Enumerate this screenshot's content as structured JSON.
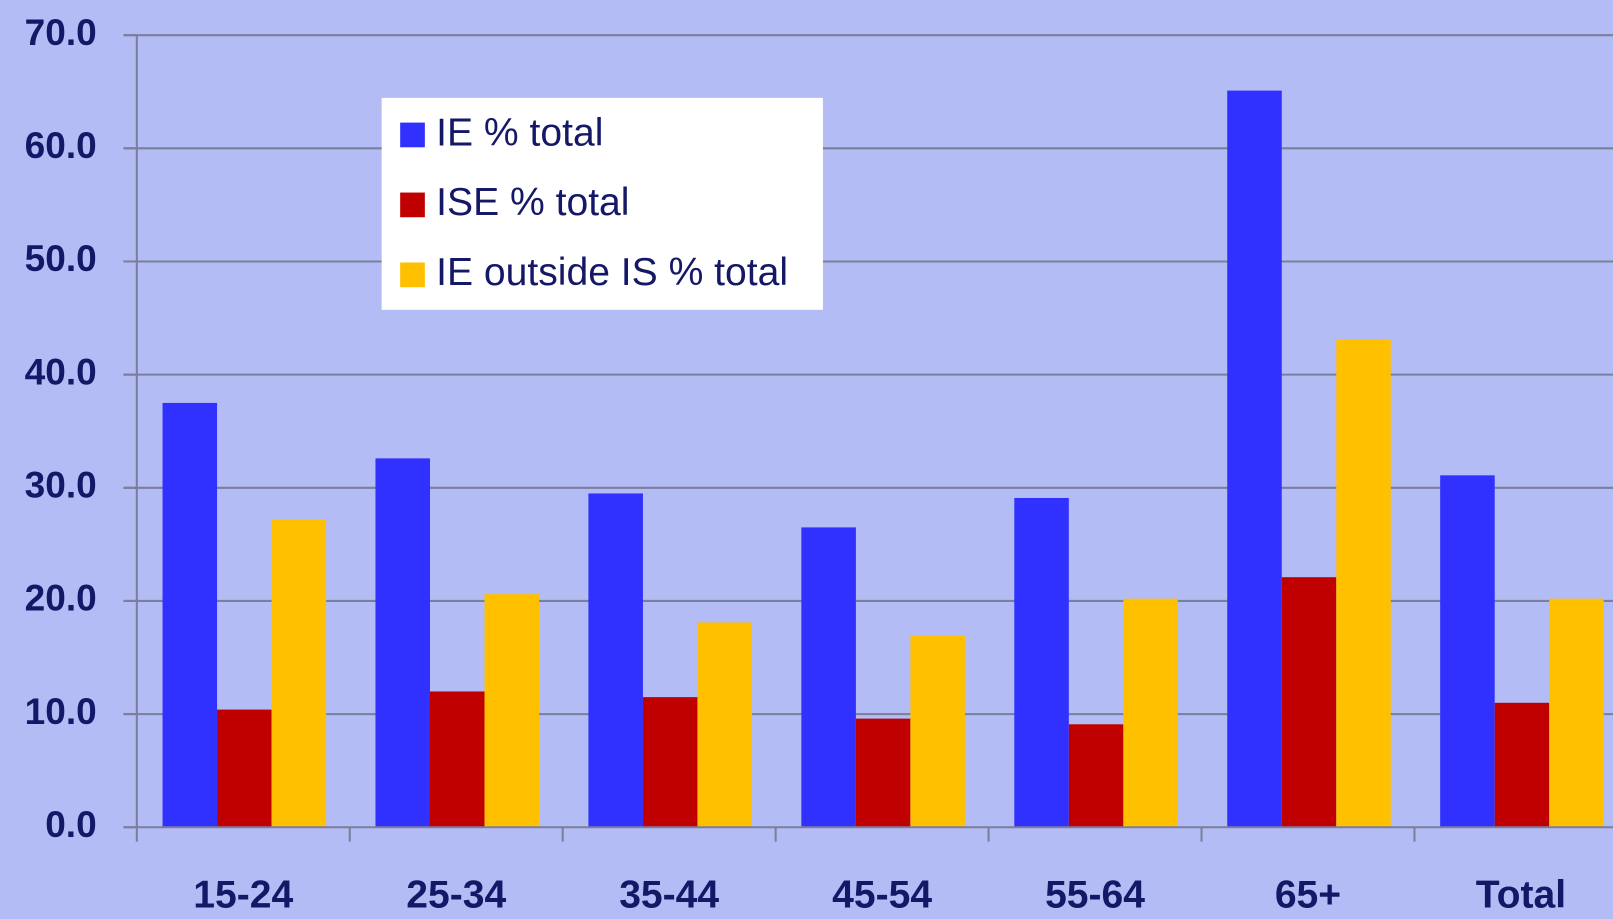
{
  "chart_data": {
    "type": "bar",
    "categories": [
      "15-24",
      "25-34",
      "35-44",
      "45-54",
      "55-64",
      "65+",
      "Total"
    ],
    "series": [
      {
        "name": "IE % total",
        "color": "#3030ff",
        "values": [
          37.5,
          32.6,
          29.5,
          26.5,
          29.1,
          65.1,
          31.1
        ]
      },
      {
        "name": "ISE % total",
        "color": "#c00000",
        "values": [
          10.4,
          12.0,
          11.5,
          9.6,
          9.1,
          22.1,
          11.0
        ]
      },
      {
        "name": "IE outside IS % total",
        "color": "#ffc000",
        "values": [
          27.2,
          20.6,
          18.1,
          16.9,
          20.2,
          43.1,
          20.2
        ]
      }
    ],
    "ylim": [
      0,
      70
    ],
    "yticks": [
      {
        "value": 0,
        "label": "0.0"
      },
      {
        "value": 10,
        "label": "10.0"
      },
      {
        "value": 20,
        "label": "20.0"
      },
      {
        "value": 30,
        "label": "30.0"
      },
      {
        "value": 40,
        "label": "40.0"
      },
      {
        "value": 50,
        "label": "50.0"
      },
      {
        "value": 60,
        "label": "60.0"
      },
      {
        "value": 70,
        "label": "70.0"
      }
    ],
    "grid": true,
    "legend": "upper left"
  }
}
